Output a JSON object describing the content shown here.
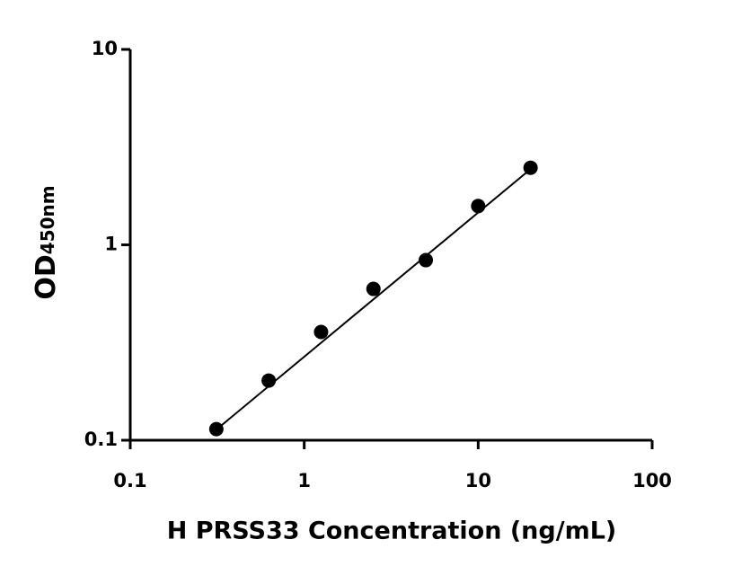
{
  "chart_data": {
    "type": "scatter",
    "xlabel": "H PRSS33 Concentration (ng/mL)",
    "ylabel": "OD",
    "ylabel_sub": "450nm",
    "xscale": "log",
    "yscale": "log",
    "xlim": [
      0.1,
      100
    ],
    "ylim": [
      0.1,
      10
    ],
    "xticks": [
      0.1,
      1,
      10,
      100
    ],
    "yticks": [
      0.1,
      1,
      10
    ],
    "x": [
      0.3125,
      0.625,
      1.25,
      2.5,
      5,
      10,
      20
    ],
    "series": [
      {
        "color": "#000000",
        "values": [
          0.114,
          0.202,
          0.358,
          0.595,
          0.835,
          1.58,
          2.48
        ]
      }
    ],
    "fit": {
      "color": "#000000",
      "x": [
        0.3,
        20
      ],
      "values": [
        0.11,
        2.44
      ]
    }
  }
}
